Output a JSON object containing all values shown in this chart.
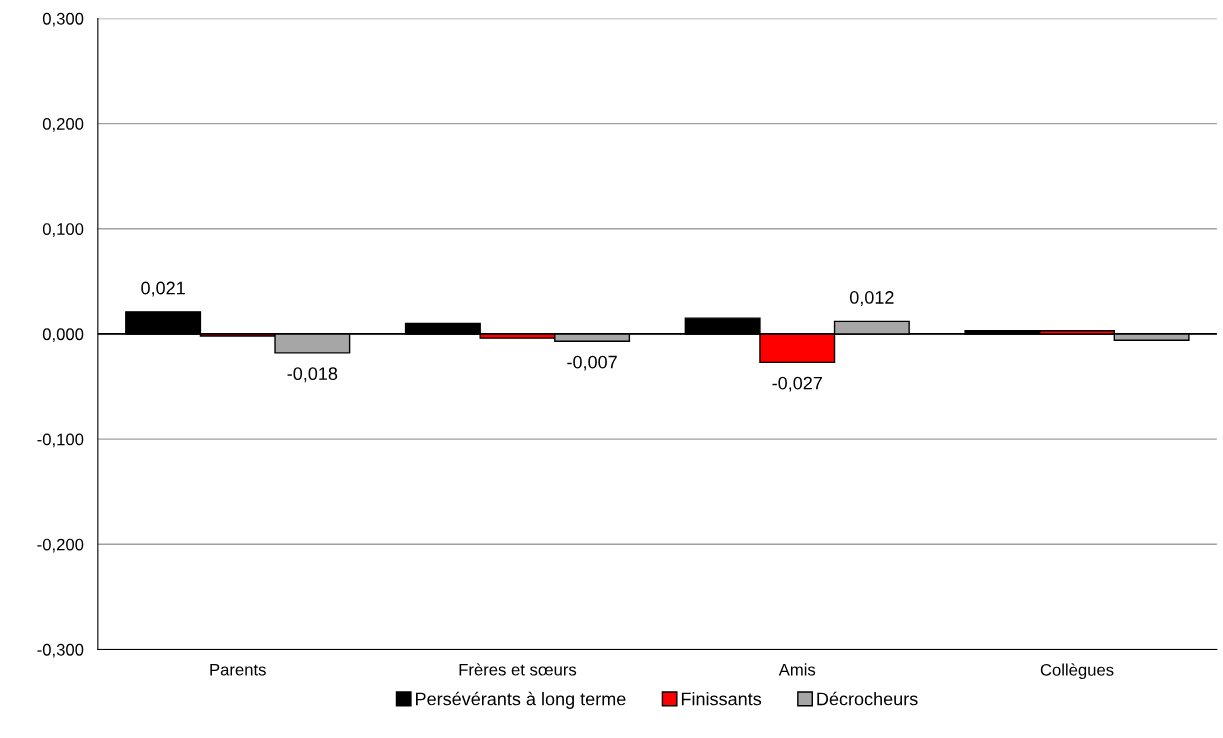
{
  "chart_data": {
    "type": "bar",
    "categories": [
      "Parents",
      "Frères et sœurs",
      "Amis",
      "Collègues"
    ],
    "series": [
      {
        "name": "Persévérants à long terme",
        "color": "#000000",
        "values": [
          0.021,
          0.01,
          0.015,
          0.003
        ],
        "value_labels": [
          "0,021",
          null,
          null,
          null
        ]
      },
      {
        "name": "Finissants",
        "color": "#ff0000",
        "values": [
          -0.002,
          -0.004,
          -0.027,
          0.003
        ],
        "value_labels": [
          null,
          null,
          "-0,027",
          null
        ]
      },
      {
        "name": "Décrocheurs",
        "color": "#a6a6a6",
        "values": [
          -0.018,
          -0.007,
          0.012,
          -0.006
        ],
        "value_labels": [
          "-0,018",
          "-0,007",
          "0,012",
          null
        ]
      }
    ],
    "ylim": [
      -0.3,
      0.3
    ],
    "yticks": [
      {
        "value": -0.3,
        "label": "-0,300"
      },
      {
        "value": -0.2,
        "label": "-0,200"
      },
      {
        "value": -0.1,
        "label": "-0,100"
      },
      {
        "value": 0,
        "label": "0,000"
      },
      {
        "value": 0.1,
        "label": "0,100"
      },
      {
        "value": 0.2,
        "label": "0,200"
      },
      {
        "value": 0.3,
        "label": "0,300"
      }
    ],
    "ref_lines": [
      {
        "axis": "y",
        "value": 0,
        "color": "#000000"
      }
    ],
    "grid": "y",
    "legend": "bottom"
  }
}
